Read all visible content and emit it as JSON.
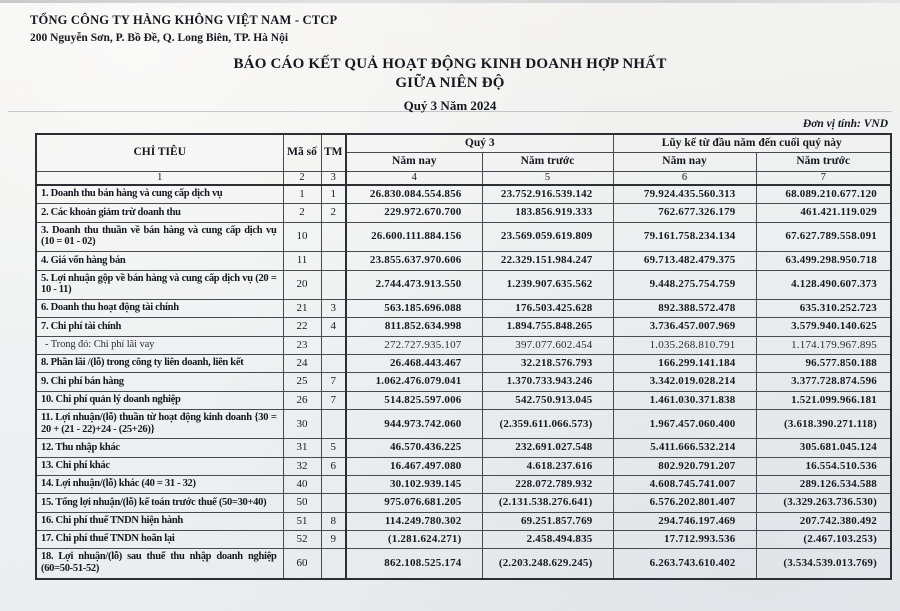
{
  "document": {
    "company_name": "TỔNG CÔNG TY HÀNG KHÔNG VIỆT NAM - CTCP",
    "company_address": "200 Nguyễn Sơn, P. Bồ Đề, Q. Long Biên, TP. Hà Nội",
    "title": "BÁO CÁO KẾT QUẢ HOẠT ĐỘNG KINH DOANH HỢP NHẤT",
    "subtitle": "GIỮA NIÊN ĐỘ",
    "period": "Quý 3 Năm 2024",
    "unit_note": "Đơn vị tính: VND"
  },
  "table": {
    "headers": {
      "criteria": "CHỈ TIÊU",
      "code": "Mã số",
      "notes": "TM",
      "q3_group": "Quý 3",
      "ytd_group": "Lũy kế từ đầu năm đến cuối quý này",
      "current_year": "Năm nay",
      "prior_year": "Năm trước",
      "col_indexes": [
        "1",
        "2",
        "3",
        "4",
        "5",
        "6",
        "7"
      ]
    },
    "rows": [
      {
        "label": "1. Doanh thu bán hàng và cung cấp dịch vụ",
        "code": "1",
        "note": "1",
        "q3_now": "26.830.084.554.856",
        "q3_prior": "23.752.916.539.142",
        "ytd_now": "79.924.435.560.313",
        "ytd_prior": "68.089.210.677.120"
      },
      {
        "label": "2. Các khoản giảm trừ doanh thu",
        "code": "2",
        "note": "2",
        "q3_now": "229.972.670.700",
        "q3_prior": "183.856.919.333",
        "ytd_now": "762.677.326.179",
        "ytd_prior": "461.421.119.029"
      },
      {
        "label": "3. Doanh thu thuần về bán hàng và cung cấp dịch vụ (10 = 01 - 02)",
        "code": "10",
        "note": "",
        "q3_now": "26.600.111.884.156",
        "q3_prior": "23.569.059.619.809",
        "ytd_now": "79.161.758.234.134",
        "ytd_prior": "67.627.789.558.091"
      },
      {
        "label": "4. Giá vốn hàng bán",
        "code": "11",
        "note": "",
        "q3_now": "23.855.637.970.606",
        "q3_prior": "22.329.151.984.247",
        "ytd_now": "69.713.482.479.375",
        "ytd_prior": "63.499.298.950.718"
      },
      {
        "label": "5. Lợi nhuận gộp về bán hàng và cung cấp dịch vụ (20 = 10 - 11)",
        "code": "20",
        "note": "",
        "q3_now": "2.744.473.913.550",
        "q3_prior": "1.239.907.635.562",
        "ytd_now": "9.448.275.754.759",
        "ytd_prior": "4.128.490.607.373"
      },
      {
        "label": "6. Doanh thu hoạt động tài chính",
        "code": "21",
        "note": "3",
        "q3_now": "563.185.696.088",
        "q3_prior": "176.503.425.628",
        "ytd_now": "892.388.572.478",
        "ytd_prior": "635.310.252.723"
      },
      {
        "label": "7. Chi phí tài chính",
        "code": "22",
        "note": "4",
        "q3_now": "811.852.634.998",
        "q3_prior": "1.894.755.848.265",
        "ytd_now": "3.736.457.007.969",
        "ytd_prior": "3.579.940.140.625"
      },
      {
        "label": "- Trong đó: Chi phí lãi vay",
        "code": "23",
        "note": "",
        "q3_now": "272.727.935.107",
        "q3_prior": "397.077.602.454",
        "ytd_now": "1.035.268.810.791",
        "ytd_prior": "1.174.179.967.895",
        "style": "sub"
      },
      {
        "label": "8. Phần lãi /(lỗ) trong công ty liên doanh, liên kết",
        "code": "24",
        "note": "",
        "q3_now": "26.468.443.467",
        "q3_prior": "32.218.576.793",
        "ytd_now": "166.299.141.184",
        "ytd_prior": "96.577.850.188"
      },
      {
        "label": "9. Chi phí bán hàng",
        "code": "25",
        "note": "7",
        "q3_now": "1.062.476.079.041",
        "q3_prior": "1.370.733.943.246",
        "ytd_now": "3.342.019.028.214",
        "ytd_prior": "3.377.728.874.596"
      },
      {
        "label": "10. Chi phí quản lý doanh nghiệp",
        "code": "26",
        "note": "7",
        "q3_now": "514.825.597.006",
        "q3_prior": "542.750.913.045",
        "ytd_now": "1.461.030.371.838",
        "ytd_prior": "1.521.099.966.181"
      },
      {
        "label": "11. Lợi nhuận/(lỗ) thuần từ hoạt động kinh doanh {30 = 20 + (21 - 22)+24 - (25+26)}",
        "code": "30",
        "note": "",
        "q3_now": "944.973.742.060",
        "q3_prior": "(2.359.611.066.573)",
        "ytd_now": "1.967.457.060.400",
        "ytd_prior": "(3.618.390.271.118)"
      },
      {
        "label": "12. Thu nhập khác",
        "code": "31",
        "note": "5",
        "q3_now": "46.570.436.225",
        "q3_prior": "232.691.027.548",
        "ytd_now": "5.411.666.532.214",
        "ytd_prior": "305.681.045.124"
      },
      {
        "label": "13. Chi phí khác",
        "code": "32",
        "note": "6",
        "q3_now": "16.467.497.080",
        "q3_prior": "4.618.237.616",
        "ytd_now": "802.920.791.207",
        "ytd_prior": "16.554.510.536"
      },
      {
        "label": "14. Lợi nhuận/(lỗ) khác (40 = 31 - 32)",
        "code": "40",
        "note": "",
        "q3_now": "30.102.939.145",
        "q3_prior": "228.072.789.932",
        "ytd_now": "4.608.745.741.007",
        "ytd_prior": "289.126.534.588"
      },
      {
        "label": "15. Tổng lợi nhuận/(lỗ) kế toán trước thuế (50=30+40)",
        "code": "50",
        "note": "",
        "q3_now": "975.076.681.205",
        "q3_prior": "(2.131.538.276.641)",
        "ytd_now": "6.576.202.801.407",
        "ytd_prior": "(3.329.263.736.530)"
      },
      {
        "label": "16. Chi phí thuế TNDN hiện hành",
        "code": "51",
        "note": "8",
        "q3_now": "114.249.780.302",
        "q3_prior": "69.251.857.769",
        "ytd_now": "294.746.197.469",
        "ytd_prior": "207.742.380.492"
      },
      {
        "label": "17. Chi phí thuế TNDN hoãn lại",
        "code": "52",
        "note": "9",
        "q3_now": "(1.281.624.271)",
        "q3_prior": "2.458.494.835",
        "ytd_now": "17.712.993.536",
        "ytd_prior": "(2.467.103.253)"
      },
      {
        "label": "18. Lợi nhuận/(lỗ) sau thuế thu nhập doanh nghiệp (60=50-51-52)",
        "code": "60",
        "note": "",
        "q3_now": "862.108.525.174",
        "q3_prior": "(2.203.248.629.245)",
        "ytd_now": "6.263.743.610.402",
        "ytd_prior": "(3.534.539.013.769)"
      }
    ]
  }
}
